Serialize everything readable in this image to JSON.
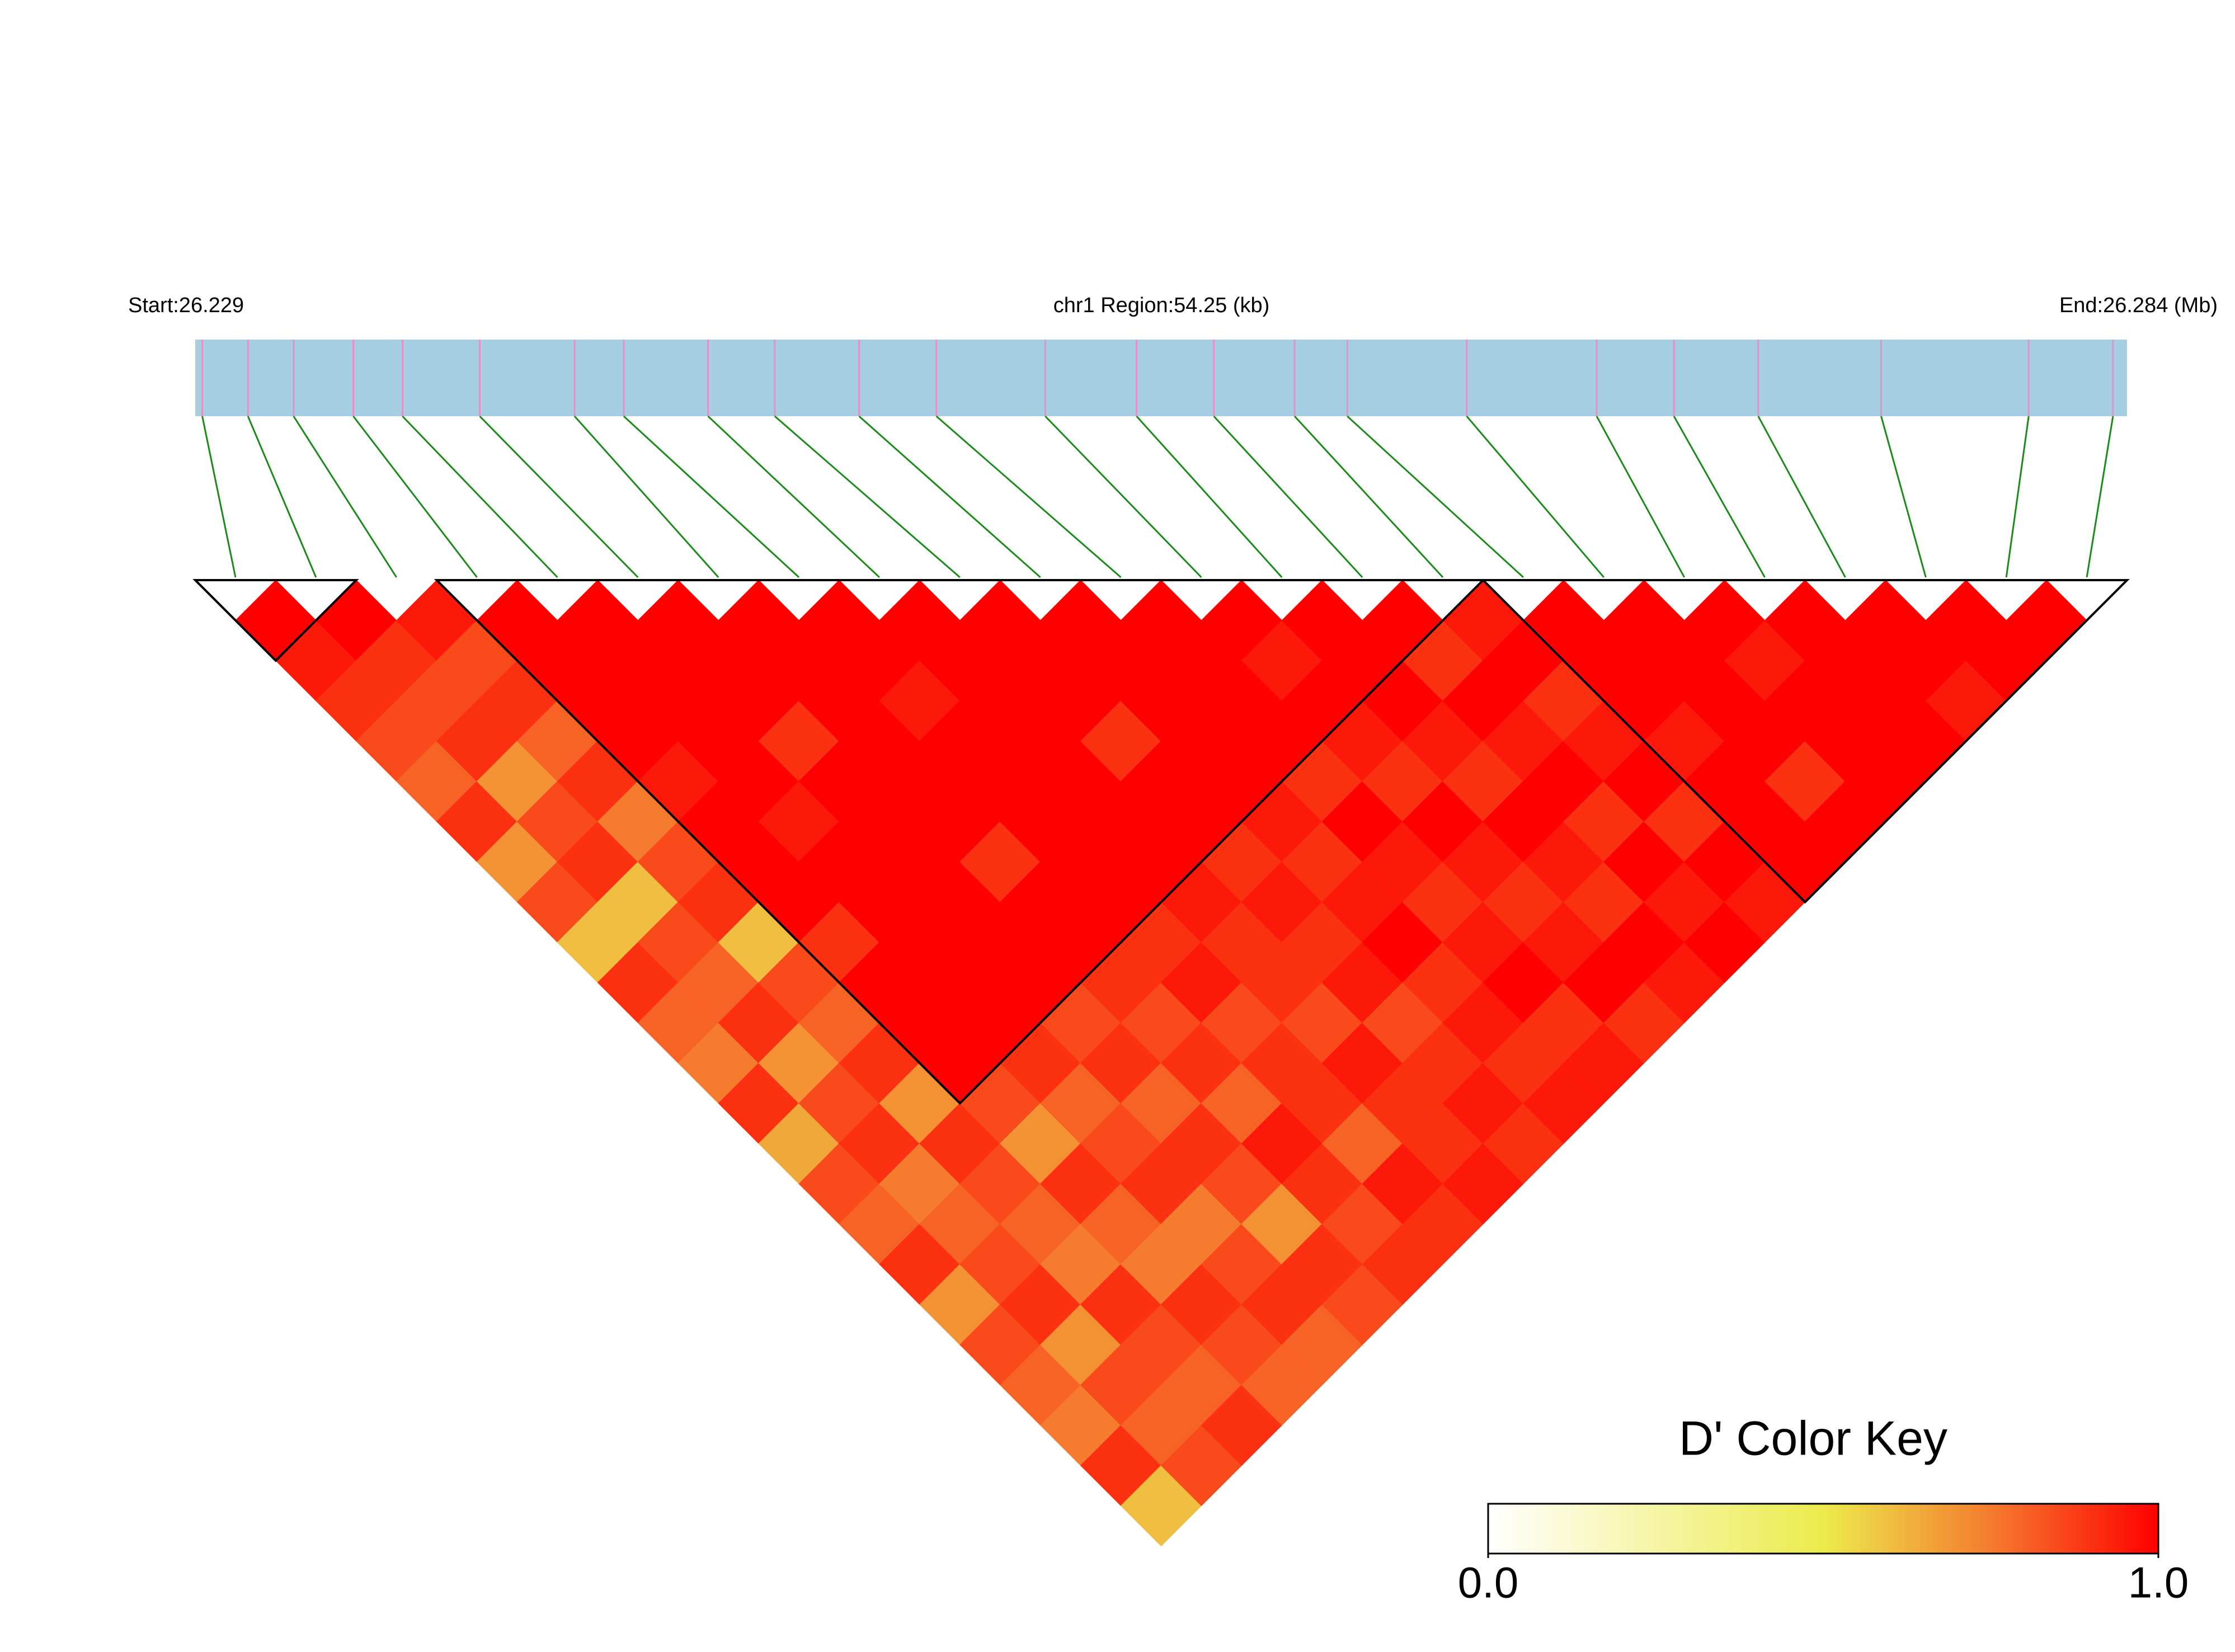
{
  "chart_data": {
    "type": "ldheatmap",
    "start_label": "Start:26.229",
    "region_label": "chr1 Region:54.25 (kb)",
    "end_label": "End:26.284 (Mb)",
    "xlim": [
      26.229,
      26.284
    ],
    "snp_positions": [
      26.2292,
      26.2305,
      26.2318,
      26.2335,
      26.2349,
      26.2371,
      26.2398,
      26.2412,
      26.2436,
      26.2455,
      26.2479,
      26.2501,
      26.2532,
      26.2558,
      26.258,
      26.2603,
      26.2618,
      26.2652,
      26.2689,
      26.2711,
      26.2735,
      26.277,
      26.2812,
      26.2836
    ],
    "dprime": [
      [
        1,
        0.95,
        0.9,
        0.85,
        0.8,
        0.9,
        0.7,
        0.85,
        0.6,
        0.9,
        0.8,
        0.75,
        0.9,
        0.65,
        0.85,
        0.8,
        0.9,
        0.7,
        0.85,
        0.8,
        0.75,
        0.9,
        0.6
      ],
      [
        1,
        0.9,
        0.85,
        0.9,
        0.7,
        0.85,
        0.9,
        0.6,
        0.85,
        0.8,
        0.9,
        0.7,
        0.85,
        0.9,
        0.75,
        0.8,
        0.85,
        0.9,
        0.7,
        0.85,
        0.8,
        0.85
      ],
      [
        0.95,
        0.85,
        0.9,
        0.8,
        0.9,
        0.75,
        0.85,
        0.9,
        0.6,
        0.85,
        0.8,
        0.9,
        0.7,
        0.9,
        0.85,
        0.8,
        0.75,
        0.9,
        0.85,
        0.8,
        0.9
      ],
      [
        1,
        1,
        1,
        1,
        0.95,
        1,
        1,
        1,
        0.9,
        1,
        1,
        1,
        0.85,
        0.7,
        0.9,
        0.8,
        0.75,
        0.9,
        0.85,
        0.8
      ],
      [
        1,
        1,
        1,
        1,
        1,
        0.95,
        1,
        1,
        1,
        1,
        1,
        0.9,
        0.8,
        0.85,
        0.9,
        0.75,
        0.85,
        0.9,
        0.8
      ],
      [
        1,
        1,
        1,
        0.9,
        1,
        1,
        1,
        1,
        1,
        1,
        0.85,
        0.9,
        0.8,
        0.9,
        0.85,
        0.7,
        0.9,
        0.85
      ],
      [
        1,
        1,
        1,
        1,
        1,
        1,
        0.9,
        1,
        1,
        0.9,
        0.85,
        0.9,
        0.8,
        0.95,
        0.9,
        0.85,
        0.9
      ],
      [
        1,
        1,
        0.95,
        1,
        1,
        1,
        1,
        1,
        0.9,
        0.95,
        0.85,
        0.9,
        0.9,
        0.8,
        0.95,
        0.9
      ],
      [
        1,
        1,
        1,
        1,
        1,
        1,
        1,
        0.95,
        0.9,
        0.9,
        0.85,
        0.95,
        0.9,
        0.9,
        0.95
      ],
      [
        1,
        1,
        1,
        0.9,
        1,
        1,
        0.9,
        0.95,
        0.9,
        0.95,
        0.85,
        0.9,
        0.95,
        0.9
      ],
      [
        1,
        1,
        1,
        1,
        1,
        0.95,
        0.9,
        0.95,
        1,
        0.9,
        0.95,
        0.9,
        0.95
      ],
      [
        1,
        1,
        1,
        1,
        0.9,
        1,
        0.95,
        0.9,
        0.95,
        1,
        0.9,
        0.95
      ],
      [
        1,
        0.95,
        1,
        0.95,
        0.9,
        1,
        0.95,
        0.9,
        0.95,
        1,
        0.9
      ],
      [
        1,
        1,
        1,
        0.95,
        0.9,
        1,
        0.95,
        0.9,
        1,
        0.95
      ],
      [
        1,
        0.9,
        1,
        0.95,
        1,
        0.9,
        1,
        0.95,
        1
      ],
      [
        0.95,
        1,
        0.9,
        0.95,
        1,
        0.9,
        1,
        0.95
      ],
      [
        1,
        1,
        1,
        0.95,
        1,
        1,
        1
      ],
      [
        1,
        1,
        1,
        1,
        0.9,
        1
      ],
      [
        1,
        0.95,
        1,
        1,
        1
      ],
      [
        1,
        1,
        1,
        1
      ],
      [
        1,
        1,
        0.95
      ],
      [
        1,
        1
      ],
      [
        1
      ]
    ],
    "blocks": [
      [
        0,
        1
      ],
      [
        3,
        15
      ],
      [
        16,
        23
      ]
    ],
    "color_stops": [
      {
        "value": 0,
        "color": "#ffffff"
      },
      {
        "value": 0.5,
        "color": "#eceb4c"
      },
      {
        "value": 0.75,
        "color": "#f57b2e"
      },
      {
        "value": 1,
        "color": "#ff0000"
      }
    ],
    "colorkey_title": "D' Color Key",
    "colorkey_lim": [
      0,
      1
    ],
    "colorkey_ticks": [
      {
        "value": 0,
        "label": "0.0"
      },
      {
        "value": 1,
        "label": "1.0"
      }
    ]
  }
}
